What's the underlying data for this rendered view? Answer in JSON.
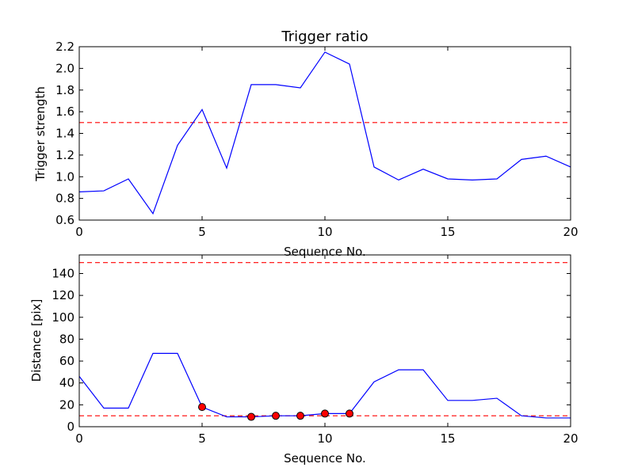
{
  "chart_data": [
    {
      "type": "line",
      "title": "Trigger ratio",
      "xlabel": "Sequence No.",
      "ylabel": "Trigger strength",
      "xlim": [
        0,
        20
      ],
      "ylim": [
        0.6,
        2.2
      ],
      "x_ticks": [
        0,
        5,
        10,
        15,
        20
      ],
      "y_ticks": [
        0.6,
        0.8,
        1.0,
        1.2,
        1.4,
        1.6,
        1.8,
        2.0,
        2.2
      ],
      "y_tick_labels": [
        "0.6",
        "0.8",
        "1.0",
        "1.2",
        "1.4",
        "1.6",
        "1.8",
        "2.0",
        "2.2"
      ],
      "grid": false,
      "series": [
        {
          "color": "#0000ff",
          "x": [
            0,
            1,
            2,
            3,
            4,
            5,
            6,
            7,
            8,
            9,
            10,
            11,
            12,
            13,
            14,
            15,
            16,
            17,
            18,
            19,
            20
          ],
          "values": [
            0.86,
            0.87,
            0.98,
            0.66,
            1.29,
            1.62,
            1.08,
            1.85,
            1.85,
            1.82,
            2.15,
            2.04,
            1.09,
            0.97,
            1.07,
            0.98,
            0.97,
            0.98,
            1.16,
            1.19,
            1.09
          ]
        }
      ],
      "hlines": [
        {
          "y": 1.5,
          "color": "#ff0000",
          "style": "dashed"
        }
      ]
    },
    {
      "type": "line",
      "title": "",
      "xlabel": "Sequence No.",
      "ylabel": "Distance [pix]",
      "xlim": [
        0,
        20
      ],
      "ylim": [
        0,
        157
      ],
      "x_ticks": [
        0,
        5,
        10,
        15,
        20
      ],
      "y_ticks": [
        0,
        20,
        40,
        60,
        80,
        100,
        120,
        140
      ],
      "y_tick_labels": [
        "0",
        "20",
        "40",
        "60",
        "80",
        "100",
        "120",
        "140"
      ],
      "grid": false,
      "series": [
        {
          "color": "#0000ff",
          "x": [
            0,
            1,
            2,
            3,
            4,
            5,
            6,
            7,
            8,
            9,
            10,
            11,
            12,
            13,
            14,
            15,
            16,
            17,
            18,
            19,
            20
          ],
          "values": [
            46,
            17,
            17,
            67,
            67,
            18,
            9,
            9,
            10,
            10,
            12,
            12,
            41,
            52,
            52,
            24,
            24,
            26,
            10,
            8,
            8
          ]
        }
      ],
      "markers": {
        "color": "#ff0000",
        "x": [
          5,
          7,
          8,
          9,
          10,
          11
        ],
        "values": [
          18,
          9,
          10,
          10,
          12,
          12
        ]
      },
      "hlines": [
        {
          "y": 150,
          "color": "#ff0000",
          "style": "dashed"
        },
        {
          "y": 10,
          "color": "#ff0000",
          "style": "dashed"
        }
      ]
    }
  ]
}
